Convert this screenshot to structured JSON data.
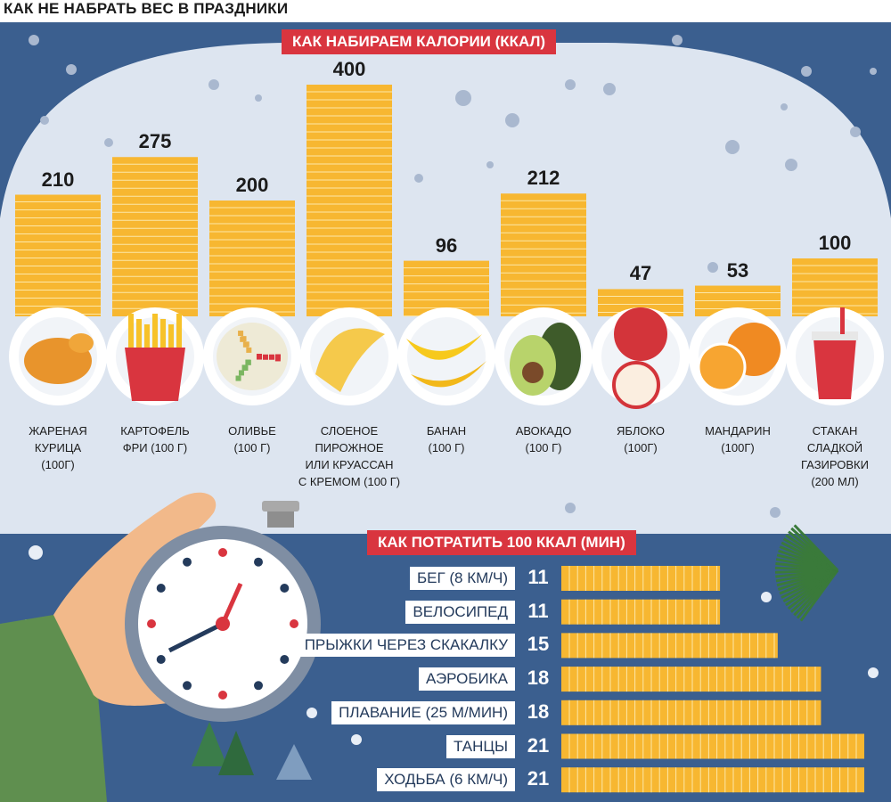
{
  "title": "КАК НЕ НАБРАТЬ ВЕС В ПРАЗДНИКИ",
  "colors": {
    "background": "#3b5f8f",
    "panel": "#dde5f0",
    "bar": "#f7b731",
    "bar_light": "#fce7a8",
    "label": "#d9353f",
    "text": "#1b1b1b"
  },
  "chart_data": [
    {
      "type": "bar",
      "title": "КАК НАБИРАЕМ КАЛОРИИ (ККАЛ)",
      "categories": [
        "ЖАРЕНАЯ\nКУРИЦА\n(100Г)",
        "КАРТОФЕЛЬ\nФРИ (100 Г)",
        "ОЛИВЬЕ\n(100 Г)",
        "СЛОЕНОЕ\nПИРОЖНОЕ\nИЛИ КРУАССАН\nС КРЕМОМ (100 Г)",
        "БАНАН\n(100 Г)",
        "АВОКАДО\n(100 Г)",
        "ЯБЛОКО\n(100Г)",
        "МАНДАРИН\n(100Г)",
        "СТАКАН\nСЛАДКОЙ\nГАЗИРОВКИ\n(200 МЛ)"
      ],
      "values": [
        210,
        275,
        200,
        400,
        96,
        212,
        47,
        53,
        100
      ],
      "value_labels": [
        "210",
        "275",
        "200",
        "400",
        "96",
        "212",
        "47",
        "53",
        "100"
      ],
      "icons": [
        "roast-chicken-icon",
        "french-fries-icon",
        "olivier-salad-icon",
        "croissant-icon",
        "banana-icon",
        "avocado-icon",
        "apple-icon",
        "tangerine-icon",
        "soda-cup-icon"
      ],
      "ylim": [
        0,
        400
      ]
    },
    {
      "type": "bar",
      "orientation": "horizontal",
      "title": "КАК ПОТРАТИТЬ 100 ККАЛ (МИН)",
      "categories": [
        "БЕГ (8 КМ/Ч)",
        "ВЕЛОСИПЕД",
        "ПРЫЖКИ ЧЕРЕЗ СКАКАЛКУ",
        "АЭРОБИКА",
        "ПЛАВАНИЕ (25 М/МИН)",
        "ТАНЦЫ",
        "ХОДЬБА (6 КМ/Ч)"
      ],
      "values": [
        11,
        11,
        15,
        18,
        18,
        21,
        21
      ],
      "value_labels": [
        "11",
        "11",
        "15",
        "18",
        "18",
        "21",
        "21"
      ],
      "xlim": [
        0,
        21
      ]
    }
  ],
  "illustration": {
    "icons": [
      "hand-icon",
      "stopwatch-icon",
      "fir-branch-icon",
      "snowflake-icon"
    ]
  }
}
